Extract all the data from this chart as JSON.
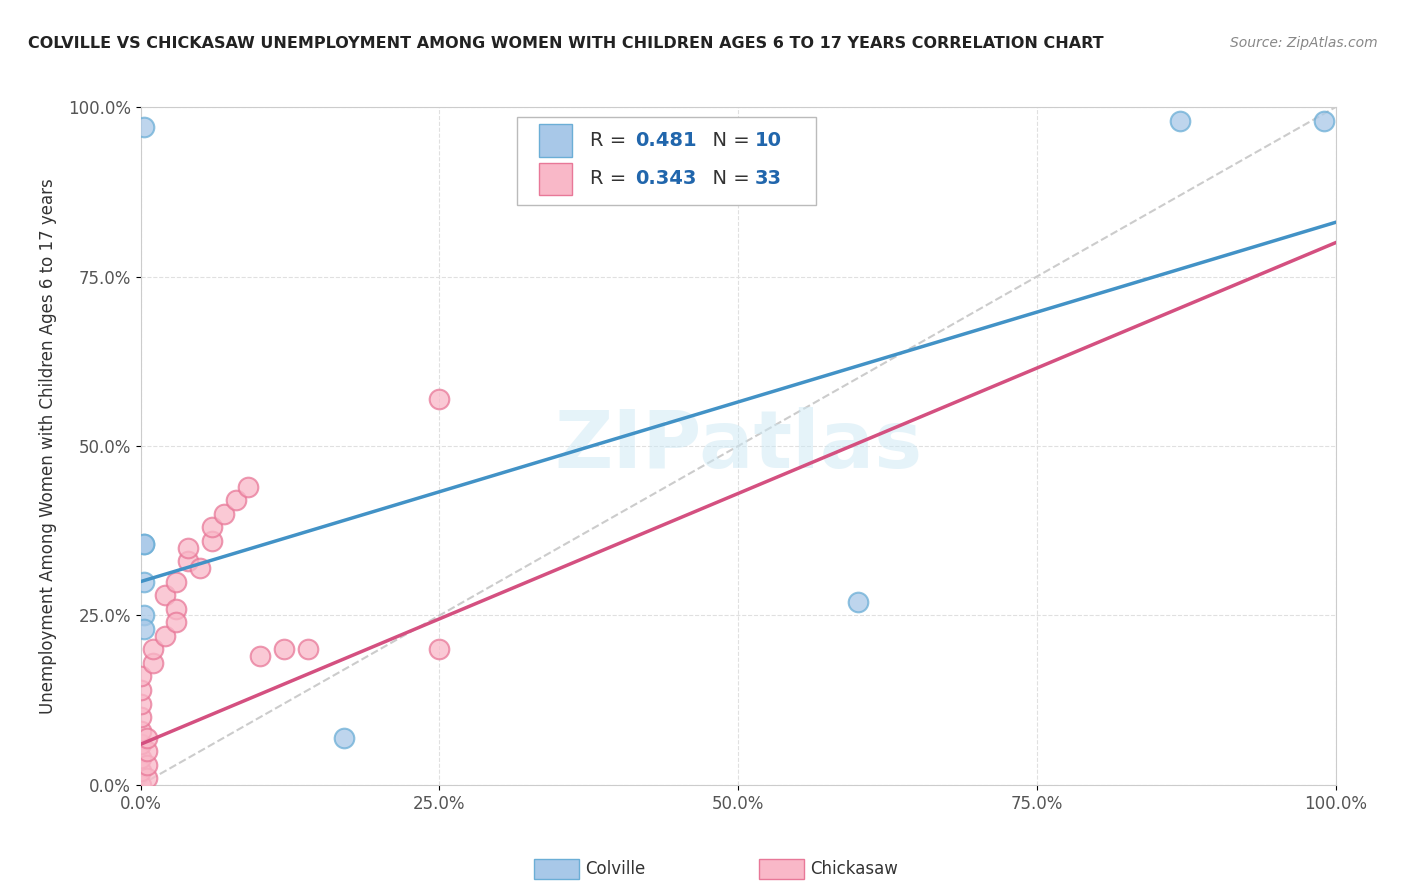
{
  "title": "COLVILLE VS CHICKASAW UNEMPLOYMENT AMONG WOMEN WITH CHILDREN AGES 6 TO 17 YEARS CORRELATION CHART",
  "source": "Source: ZipAtlas.com",
  "ylabel": "Unemployment Among Women with Children Ages 6 to 17 years",
  "colville_R": 0.481,
  "colville_N": 10,
  "chickasaw_R": 0.343,
  "chickasaw_N": 33,
  "colville_color": "#a8c8e8",
  "colville_edge": "#6baed6",
  "chickasaw_color": "#f9b8c8",
  "chickasaw_edge": "#e87898",
  "reg_colville": "#4292c6",
  "reg_chickasaw": "#d45080",
  "diagonal_color": "#cccccc",
  "watermark": "ZIPatlas",
  "colville_x": [
    0.003,
    0.003,
    0.003,
    0.003,
    0.003,
    0.17,
    0.6,
    0.87,
    0.99,
    0.003
  ],
  "colville_y": [
    0.97,
    0.355,
    0.3,
    0.25,
    0.23,
    0.07,
    0.27,
    0.98,
    0.98,
    0.355
  ],
  "chickasaw_x": [
    0.0,
    0.0,
    0.0,
    0.0,
    0.0,
    0.0,
    0.0,
    0.0,
    0.0,
    0.01,
    0.01,
    0.02,
    0.02,
    0.03,
    0.03,
    0.03,
    0.04,
    0.04,
    0.05,
    0.06,
    0.06,
    0.07,
    0.08,
    0.09,
    0.1,
    0.12,
    0.14,
    0.25,
    0.25,
    0.005,
    0.005,
    0.005,
    0.005
  ],
  "chickasaw_y": [
    0.0,
    0.02,
    0.04,
    0.06,
    0.08,
    0.1,
    0.12,
    0.14,
    0.16,
    0.18,
    0.2,
    0.22,
    0.28,
    0.3,
    0.26,
    0.24,
    0.33,
    0.35,
    0.32,
    0.36,
    0.38,
    0.4,
    0.42,
    0.44,
    0.19,
    0.2,
    0.2,
    0.57,
    0.2,
    0.01,
    0.03,
    0.05,
    0.07
  ],
  "xlim": [
    0.0,
    1.0
  ],
  "ylim": [
    0.0,
    1.0
  ],
  "xticks": [
    0.0,
    0.25,
    0.5,
    0.75,
    1.0
  ],
  "yticks": [
    0.0,
    0.25,
    0.5,
    0.75,
    1.0
  ],
  "xticklabels": [
    "0.0%",
    "25.0%",
    "50.0%",
    "75.0%",
    "100.0%"
  ],
  "yticklabels": [
    "0.0%",
    "25.0%",
    "50.0%",
    "75.0%",
    "100.0%"
  ],
  "background_color": "#ffffff",
  "grid_color": "#e0e0e0"
}
